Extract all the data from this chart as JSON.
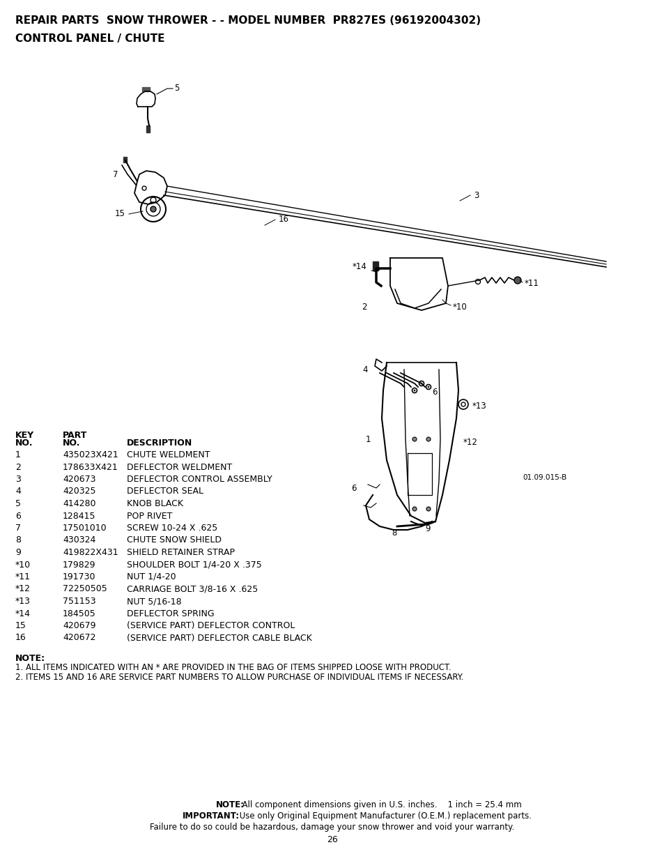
{
  "title_line1": "REPAIR PARTS  SNOW THROWER - - MODEL NUMBER  PR827ES (96192004302)",
  "title_line2": "CONTROL PANEL / CHUTE",
  "table_rows": [
    [
      "1",
      "435023X421",
      "CHUTE WELDMENT"
    ],
    [
      "2",
      "178633X421",
      "DEFLECTOR WELDMENT"
    ],
    [
      "3",
      "420673",
      "DEFLECTOR CONTROL ASSEMBLY"
    ],
    [
      "4",
      "420325",
      "DEFLECTOR SEAL"
    ],
    [
      "5",
      "414280",
      "KNOB BLACK"
    ],
    [
      "6",
      "128415",
      "POP RIVET"
    ],
    [
      "7",
      "17501010",
      "SCREW 10-24 X .625"
    ],
    [
      "8",
      "430324",
      "CHUTE SNOW SHIELD"
    ],
    [
      "9",
      "419822X431",
      "SHIELD RETAINER STRAP"
    ],
    [
      "*10",
      "179829",
      "SHOULDER BOLT 1/4-20 X .375"
    ],
    [
      "*11",
      "191730",
      "NUT 1/4-20"
    ],
    [
      "*12",
      "72250505",
      "CARRIAGE BOLT 3/8-16 X .625"
    ],
    [
      "*13",
      "751153",
      "NUT 5/16-18"
    ],
    [
      "*14",
      "184505",
      "DEFLECTOR SPRING"
    ],
    [
      "15",
      "420679",
      "(SERVICE PART) DEFLECTOR CONTROL"
    ],
    [
      "16",
      "420672",
      "(SERVICE PART) DEFLECTOR CABLE BLACK"
    ]
  ],
  "note_lines": [
    "1. ALL ITEMS INDICATED WITH AN * ARE PROVIDED IN THE BAG OF ITEMS SHIPPED LOOSE WITH PRODUCT.",
    "2. ITEMS 15 AND 16 ARE SERVICE PART NUMBERS TO ALLOW PURCHASE OF INDIVIDUAL ITEMS IF NECESSARY."
  ],
  "footer_line1_bold": "NOTE:",
  "footer_line1_rest": "  All component dimensions given in U.S. inches.    1 inch = 25.4 mm",
  "footer_line2_bold": "IMPORTANT:",
  "footer_line2_rest": " Use only Original Equipment Manufacturer (O.E.M.) replacement parts.",
  "footer_line3": "Failure to do so could be hazardous, damage your snow thrower and void your warranty.",
  "page_number": "26",
  "bg_color": "#ffffff",
  "text_color": "#000000",
  "diagram_color": "#000000"
}
